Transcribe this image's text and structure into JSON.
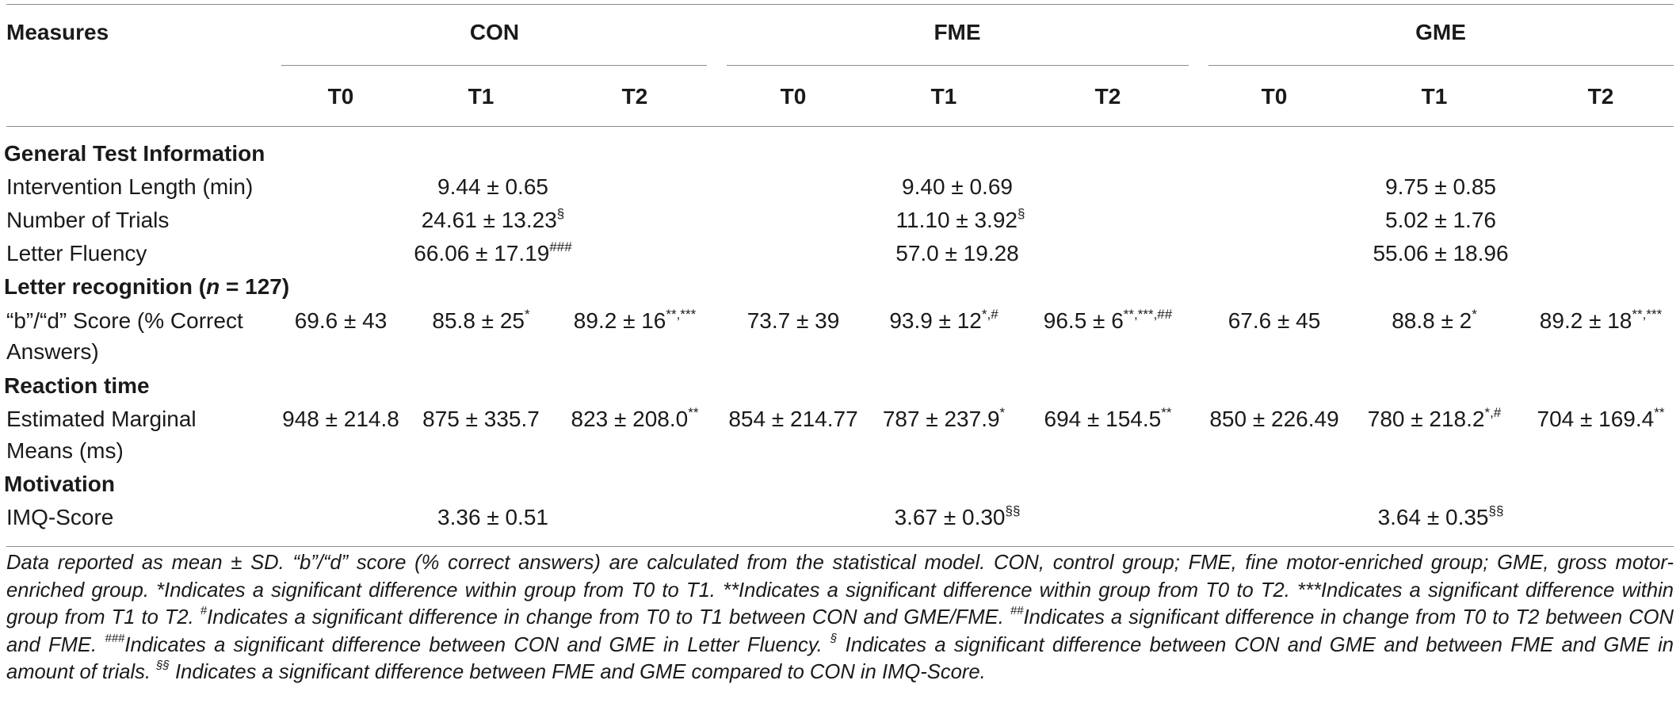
{
  "header": {
    "measures": "Measures",
    "groups": [
      "CON",
      "FME",
      "GME"
    ],
    "timepoints": [
      "T0",
      "T1",
      "T2"
    ]
  },
  "sections": {
    "general": "General Test Information",
    "letter_recognition_prefix": "Letter recognition (",
    "letter_recognition_n": "n",
    "letter_recognition_suffix": " = 127)",
    "reaction": "Reaction time",
    "motivation": "Motivation"
  },
  "rows": {
    "intervention": {
      "label": "Intervention Length (min)",
      "values": [
        "9.44 ± 0.65",
        "9.40 ± 0.69",
        "9.75 ± 0.85"
      ]
    },
    "trials": {
      "label": "Number of Trials",
      "values": [
        "24.61 ± 13.23",
        "11.10 ± 3.92",
        "5.02 ± 1.76"
      ],
      "sups": [
        "§",
        "§",
        ""
      ]
    },
    "fluency": {
      "label": "Letter Fluency",
      "values": [
        "66.06 ± 17.19",
        "57.0 ± 19.28",
        "55.06 ± 18.96"
      ],
      "sups": [
        "###",
        "",
        ""
      ]
    },
    "bd": {
      "label_line1": "“b”/“d” Score (% Correct",
      "label_line2": "Answers)",
      "values": [
        "69.6 ± 43",
        "85.8 ± 25",
        "89.2 ± 16",
        "73.7 ± 39",
        "93.9 ± 12",
        "96.5 ± 6",
        "67.6 ± 45",
        "88.8 ± 2",
        "89.2 ± 18"
      ],
      "sups": [
        "",
        "*",
        "**,***",
        "",
        "*,#",
        "**,***,##",
        "",
        "*",
        "**,***"
      ]
    },
    "emm": {
      "label_line1": "Estimated Marginal",
      "label_line2": "Means (ms)",
      "values": [
        "948 ± 214.8",
        "875 ± 335.7",
        "823 ± 208.0",
        "854 ± 214.77",
        "787 ± 237.9",
        "694 ± 154.5",
        "850 ± 226.49",
        "780 ± 218.2",
        "704 ± 169.4"
      ],
      "sups": [
        "",
        "",
        "**",
        "",
        "*",
        "**",
        "",
        "*,#",
        "**"
      ]
    },
    "imq": {
      "label": "IMQ-Score",
      "values": [
        "3.36 ± 0.51",
        "3.67 ± 0.30",
        "3.64 ± 0.35"
      ],
      "sups": [
        "",
        "§§",
        "§§"
      ]
    }
  },
  "footnote": {
    "p1": "Data reported as mean ± SD. “b”/“d” score (% correct answers) are calculated from the statistical model. CON, control group; FME, fine motor-enriched group; GME, gross motor-enriched group. *Indicates a significant difference within group from T0 to T1. **Indicates a significant difference within group from T0 to T2. ***Indicates a significant difference within group from T1 to T2. ",
    "s1": "#",
    "p2": "Indicates a significant difference in change from T0 to T1 between CON and GME/FME. ",
    "s2": "##",
    "p3": "Indicates a significant difference in change from T0 to T2 between CON and FME. ",
    "s3": "###",
    "p4": "Indicates a significant difference between CON and GME in Letter Fluency. ",
    "s4": "§",
    "p5": " Indicates a significant difference between CON and GME and between FME and GME in amount of trials. ",
    "s5": "§§",
    "p6": " Indicates a significant difference between FME and GME compared to CON in IMQ-Score."
  }
}
